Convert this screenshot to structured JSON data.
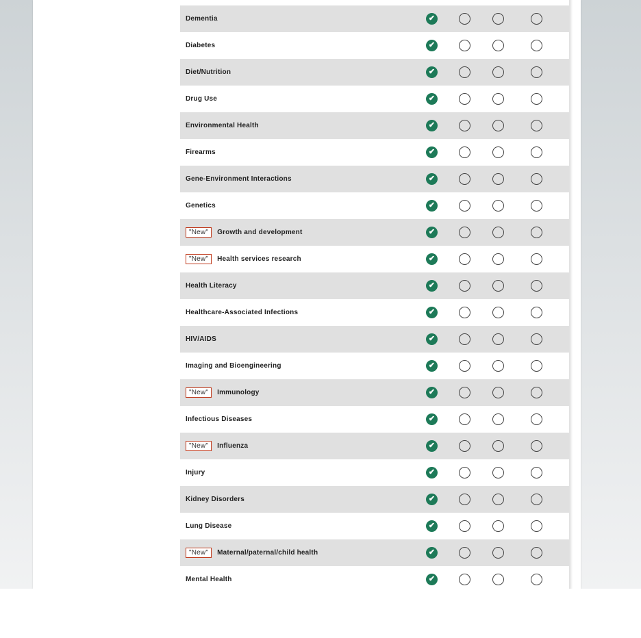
{
  "colors": {
    "accent": "#1d7a58",
    "badge_border": "#c0391b",
    "row_alt": "#e0e0e0"
  },
  "new_badge": "\"New\"",
  "rows": [
    {
      "label": "Dementia",
      "new": false,
      "selected": 0
    },
    {
      "label": "Diabetes",
      "new": false,
      "selected": 0
    },
    {
      "label": "Diet/Nutrition",
      "new": false,
      "selected": 0
    },
    {
      "label": "Drug Use",
      "new": false,
      "selected": 0
    },
    {
      "label": "Environmental Health",
      "new": false,
      "selected": 0
    },
    {
      "label": "Firearms",
      "new": false,
      "selected": 0
    },
    {
      "label": "Gene-Environment Interactions",
      "new": false,
      "selected": 0
    },
    {
      "label": "Genetics",
      "new": false,
      "selected": 0
    },
    {
      "label": "Growth and development",
      "new": true,
      "selected": 0
    },
    {
      "label": "Health services research",
      "new": true,
      "selected": 0
    },
    {
      "label": "Health Literacy",
      "new": false,
      "selected": 0
    },
    {
      "label": "Healthcare-Associated Infections",
      "new": false,
      "selected": 0
    },
    {
      "label": "HIV/AIDS",
      "new": false,
      "selected": 0
    },
    {
      "label": "Imaging and Bioengineering",
      "new": false,
      "selected": 0
    },
    {
      "label": "Immunology",
      "new": true,
      "selected": 0
    },
    {
      "label": "Infectious Diseases",
      "new": false,
      "selected": 0
    },
    {
      "label": "Influenza",
      "new": true,
      "selected": 0
    },
    {
      "label": "Injury",
      "new": false,
      "selected": 0
    },
    {
      "label": "Kidney Disorders",
      "new": false,
      "selected": 0
    },
    {
      "label": "Lung Disease",
      "new": false,
      "selected": 0
    },
    {
      "label": "Maternal/paternal/child health",
      "new": true,
      "selected": 0
    },
    {
      "label": "Mental Health",
      "new": false,
      "selected": 0
    }
  ]
}
